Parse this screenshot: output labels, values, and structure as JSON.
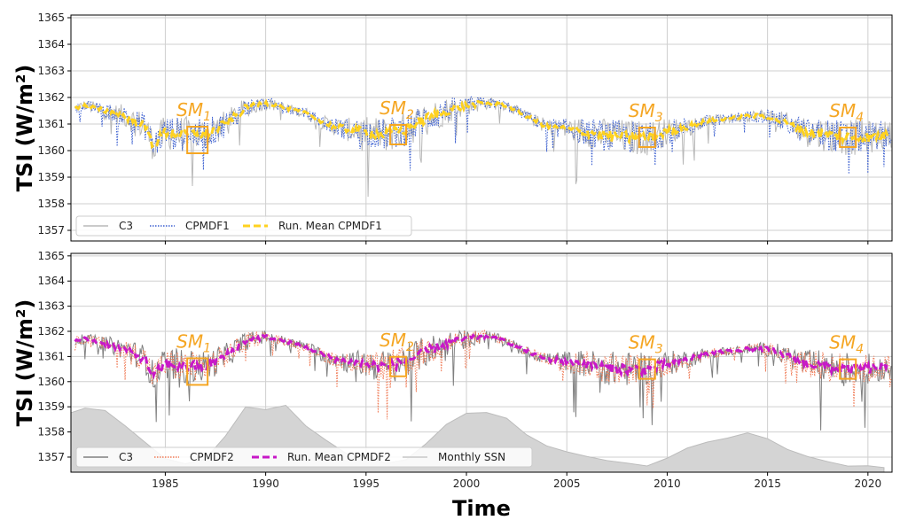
{
  "chart_data": [
    {
      "type": "line",
      "panel": "top",
      "ylabel": "TSI (W/m²)",
      "ylim": [
        1356.6,
        1365.1
      ],
      "xlim": [
        1980.3,
        2021.2
      ],
      "yticks": [
        1357,
        1358,
        1359,
        1360,
        1361,
        1362,
        1363,
        1364,
        1365
      ],
      "xticks": [
        1985,
        1990,
        1995,
        2000,
        2005,
        2010,
        2015,
        2020
      ],
      "grid": true,
      "legend_position": "lower-left",
      "legend": [
        "C3",
        "CPMDF1",
        "Run. Mean CPMDF1"
      ],
      "series": [
        {
          "name": "C3",
          "color": "#b8b8b8",
          "style": "solid"
        },
        {
          "name": "CPMDF1",
          "color": "#3b5fd0",
          "style": "dotted"
        },
        {
          "name": "Run. Mean CPMDF1",
          "color": "#ffd21f",
          "style": "dashed",
          "x": [
            1980.5,
            1981,
            1982,
            1983,
            1984,
            1984.4,
            1985,
            1986,
            1987,
            1988,
            1989,
            1990,
            1991,
            1992,
            1993,
            1994,
            1995,
            1996,
            1997,
            1998,
            1999,
            2000,
            2001,
            2002,
            2003,
            2004,
            2005,
            2006,
            2007,
            2008,
            2009,
            2010,
            2011,
            2012,
            2013,
            2014,
            2015,
            2016,
            2017,
            2018,
            2019,
            2020,
            2021
          ],
          "values": [
            1361.6,
            1361.7,
            1361.5,
            1361.3,
            1360.9,
            1360.2,
            1360.7,
            1360.6,
            1360.6,
            1361.0,
            1361.6,
            1361.8,
            1361.6,
            1361.4,
            1361.0,
            1360.8,
            1360.7,
            1360.6,
            1360.8,
            1361.2,
            1361.5,
            1361.7,
            1361.8,
            1361.7,
            1361.3,
            1360.9,
            1360.8,
            1360.7,
            1360.55,
            1360.5,
            1360.5,
            1360.7,
            1360.9,
            1361.1,
            1361.2,
            1361.3,
            1361.3,
            1361.0,
            1360.7,
            1360.6,
            1360.5,
            1360.5,
            1360.6
          ]
        }
      ],
      "annotations": [
        {
          "label": "SM",
          "sub": "1",
          "x": 1986.6,
          "y": 1360.4
        },
        {
          "label": "SM",
          "sub": "2",
          "x": 1996.6,
          "y": 1360.6
        },
        {
          "label": "SM",
          "sub": "3",
          "x": 2009.0,
          "y": 1360.5
        },
        {
          "label": "SM",
          "sub": "4",
          "x": 2019.0,
          "y": 1360.5
        }
      ]
    },
    {
      "type": "line",
      "panel": "bottom",
      "ylabel": "TSI (W/m²)",
      "xlabel": "Time",
      "ylim": [
        1356.4,
        1365.1
      ],
      "xlim": [
        1980.3,
        2021.2
      ],
      "yticks": [
        1357,
        1358,
        1359,
        1360,
        1361,
        1362,
        1363,
        1364,
        1365
      ],
      "xticks": [
        1985,
        1990,
        1995,
        2000,
        2005,
        2010,
        2015,
        2020
      ],
      "grid": true,
      "legend_position": "lower-left",
      "legend": [
        "C3",
        "CPMDF2",
        "Run. Mean CPMDF2",
        "Monthly SSN"
      ],
      "series": [
        {
          "name": "C3",
          "color": "#808080",
          "style": "solid"
        },
        {
          "name": "CPMDF2",
          "color": "#f07a55",
          "style": "dotted"
        },
        {
          "name": "Run. Mean CPMDF2",
          "color": "#c818c8",
          "style": "dashed",
          "x": [
            1980.5,
            1981,
            1982,
            1983,
            1984,
            1984.4,
            1985,
            1986,
            1987,
            1988,
            1989,
            1990,
            1991,
            1992,
            1993,
            1994,
            1995,
            1996,
            1997,
            1998,
            1999,
            2000,
            2001,
            2002,
            2003,
            2004,
            2005,
            2006,
            2007,
            2008,
            2009,
            2010,
            2011,
            2012,
            2013,
            2014,
            2015,
            2016,
            2017,
            2018,
            2019,
            2020,
            2021
          ],
          "values": [
            1361.6,
            1361.7,
            1361.5,
            1361.3,
            1360.9,
            1360.2,
            1360.7,
            1360.6,
            1360.6,
            1361.0,
            1361.6,
            1361.8,
            1361.6,
            1361.4,
            1361.0,
            1360.8,
            1360.7,
            1360.6,
            1360.8,
            1361.2,
            1361.5,
            1361.7,
            1361.8,
            1361.6,
            1361.2,
            1360.9,
            1360.8,
            1360.7,
            1360.55,
            1360.5,
            1360.5,
            1360.7,
            1360.9,
            1361.1,
            1361.2,
            1361.3,
            1361.3,
            1361.0,
            1360.7,
            1360.6,
            1360.5,
            1360.5,
            1360.6
          ]
        },
        {
          "name": "Monthly SSN",
          "color": "#c8c8c8",
          "style": "filled",
          "x": [
            1980.3,
            1981,
            1982,
            1983,
            1984,
            1985,
            1986,
            1987,
            1988,
            1989,
            1990,
            1991,
            1992,
            1993,
            1994,
            1995,
            1996,
            1997,
            1998,
            1999,
            2000,
            2001,
            2002,
            2003,
            2004,
            2005,
            2006,
            2007,
            2008,
            2009,
            2010,
            2011,
            2012,
            2013,
            2014,
            2015,
            2016,
            2017,
            2018,
            2019,
            2020,
            2020.8
          ],
          "values": [
            1358.8,
            1359.0,
            1358.9,
            1358.3,
            1357.6,
            1357.0,
            1356.75,
            1357.0,
            1357.8,
            1359.0,
            1358.9,
            1359.0,
            1358.3,
            1357.7,
            1357.2,
            1357.0,
            1356.75,
            1356.9,
            1357.6,
            1358.3,
            1358.8,
            1358.7,
            1358.6,
            1357.9,
            1357.4,
            1357.2,
            1357.0,
            1356.85,
            1356.7,
            1356.7,
            1357.0,
            1357.4,
            1357.6,
            1357.7,
            1357.9,
            1357.7,
            1357.3,
            1357.0,
            1356.8,
            1356.7,
            1356.7,
            1356.65
          ]
        }
      ],
      "annotations": [
        {
          "label": "SM",
          "sub": "1",
          "x": 1986.6,
          "y": 1360.4
        },
        {
          "label": "SM",
          "sub": "2",
          "x": 1996.6,
          "y": 1360.6
        },
        {
          "label": "SM",
          "sub": "3",
          "x": 2009.0,
          "y": 1360.5
        },
        {
          "label": "SM",
          "sub": "4",
          "x": 2019.0,
          "y": 1360.5
        }
      ]
    }
  ]
}
